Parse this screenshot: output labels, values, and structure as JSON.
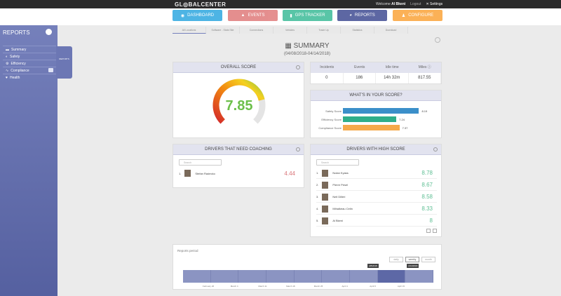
{
  "header": {
    "logo": "GL◎BALCENTER",
    "welcome_prefix": "Welcome",
    "user": "Al Bkeni",
    "logout": "Logout",
    "settings": "Settings"
  },
  "nav": [
    {
      "label": "DASHBOARD",
      "icon": "dashboard-icon",
      "color": "#2fa8e0"
    },
    {
      "label": "EVENTS",
      "icon": "warning-icon",
      "color": "#e07b7b"
    },
    {
      "label": "GPS TRACKER",
      "icon": "gps-icon",
      "color": "#3dbb98"
    },
    {
      "label": "REPORTS",
      "icon": "reports-icon",
      "color": "#5d67a3"
    },
    {
      "label": "CONFIGURE",
      "icon": "user-icon",
      "color": "#fba43a"
    }
  ],
  "sidebar": {
    "title": "REPORTS",
    "popout_label": "REPORTS",
    "items": [
      {
        "label": "Summary",
        "icon": "chart-icon"
      },
      {
        "label": "Safety",
        "icon": "shield-icon"
      },
      {
        "label": "Efficiency",
        "icon": "gear-icon"
      },
      {
        "label": "Compliance",
        "icon": "wave-icon"
      },
      {
        "label": "Health",
        "icon": "heart-icon"
      }
    ]
  },
  "tabs": [
    "All Locations",
    "Software - Stats Site",
    "Connections",
    "Vehicles",
    "Trade Up",
    "Statistics",
    "Download"
  ],
  "summary": {
    "title": "SUMMARY",
    "date_range": "(04/08/2018-04/14/2018)"
  },
  "overall": {
    "title": "OVERALL SCORE",
    "score": "7.85",
    "fraction": 0.785
  },
  "stats": {
    "headers": [
      "Incidents",
      "Events",
      "Idle time",
      "Miles"
    ],
    "values": [
      "0",
      "186",
      "14h 32m",
      "817.55"
    ]
  },
  "whats_in": {
    "title": "WHAT'S IN YOUR SCORE?",
    "bars": [
      {
        "label": "Safety Score",
        "value": "8.19",
        "num": 8.19,
        "color": "#3b8fc9"
      },
      {
        "label": "Efficiency Score",
        "value": "7.24",
        "num": 7.24,
        "color": "#2fae8a"
      },
      {
        "label": "Compliance Score",
        "value": "7.37",
        "num": 7.37,
        "color": "#f5a94a"
      }
    ]
  },
  "coaching": {
    "title": "DRIVERS THAT NEED COACHING",
    "search_placeholder": "Search",
    "drivers": [
      {
        "rank": "1.",
        "name": "Stefan Radecko",
        "score": "4.44"
      }
    ]
  },
  "high": {
    "title": "DRIVERS WITH HIGH SCORE",
    "search_placeholder": "Search",
    "drivers": [
      {
        "rank": "1.",
        "name": "Nolan Kyass",
        "score": "8.78"
      },
      {
        "rank": "2.",
        "name": "Pierre Pesel",
        "score": "8.67"
      },
      {
        "rank": "3.",
        "name": "Neil Dilleri",
        "score": "8.58"
      },
      {
        "rank": "4.",
        "name": "Mihalkeau Celin",
        "score": "8.33"
      },
      {
        "rank": "5.",
        "name": "Al Bkeni",
        "score": "8"
      }
    ]
  },
  "period": {
    "title": "Reports period",
    "buttons": [
      "daily",
      "weekly",
      "month"
    ],
    "ticks": [
      "February 26",
      "March 4",
      "March 11",
      "March 18",
      "March 25",
      "April 1",
      "April 8",
      "April 15"
    ],
    "flags": [
      "4/8/2018",
      "4/14/2018"
    ]
  }
}
